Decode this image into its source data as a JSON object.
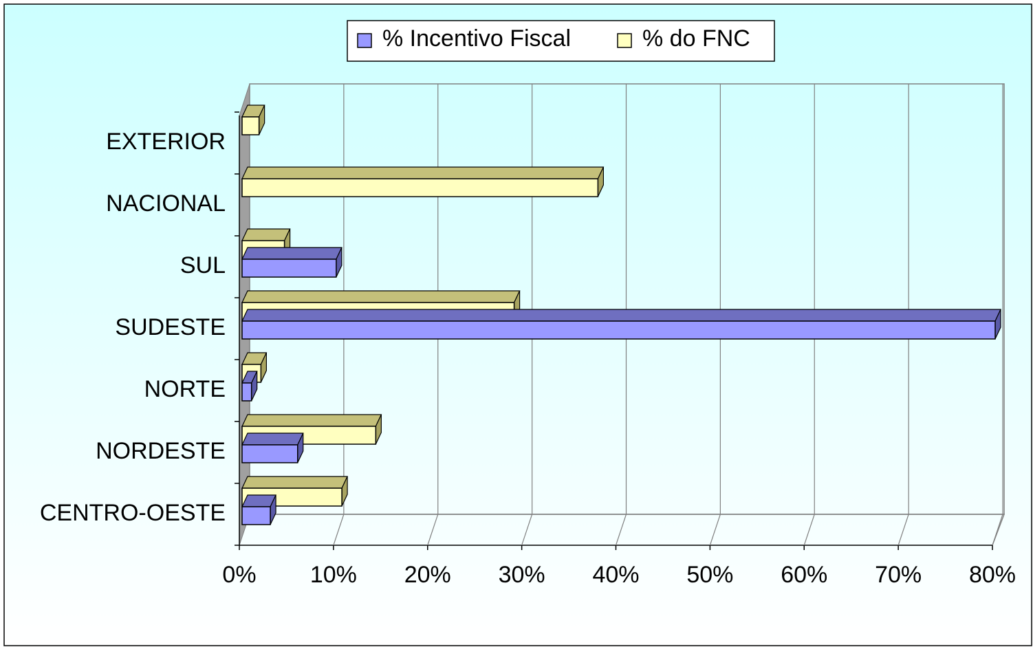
{
  "chart_data": {
    "type": "bar3d",
    "orientation": "horizontal",
    "categories": [
      "CENTRO-OESTE",
      "NORDESTE",
      "NORTE",
      "SUDESTE",
      "SUL",
      "NACIONAL",
      "EXTERIOR"
    ],
    "series": [
      {
        "name": "% Incentivo Fiscal",
        "color": "#9999ff",
        "values": [
          3,
          5.9,
          1,
          80,
          10,
          null,
          null
        ]
      },
      {
        "name": "% do FNC",
        "color": "#ffffc0",
        "values": [
          10.6,
          14.2,
          2,
          28.9,
          4.5,
          37.8,
          1.8
        ]
      }
    ],
    "xlim": [
      0,
      80
    ],
    "xticks": [
      {
        "value": 0,
        "label": "0%"
      },
      {
        "value": 10,
        "label": "10%"
      },
      {
        "value": 20,
        "label": "20%"
      },
      {
        "value": 30,
        "label": "30%"
      },
      {
        "value": 40,
        "label": "40%"
      },
      {
        "value": 50,
        "label": "50%"
      },
      {
        "value": 60,
        "label": "60%"
      },
      {
        "value": 70,
        "label": "70%"
      },
      {
        "value": 80,
        "label": "80%"
      }
    ],
    "grid": true,
    "legend": "top"
  }
}
